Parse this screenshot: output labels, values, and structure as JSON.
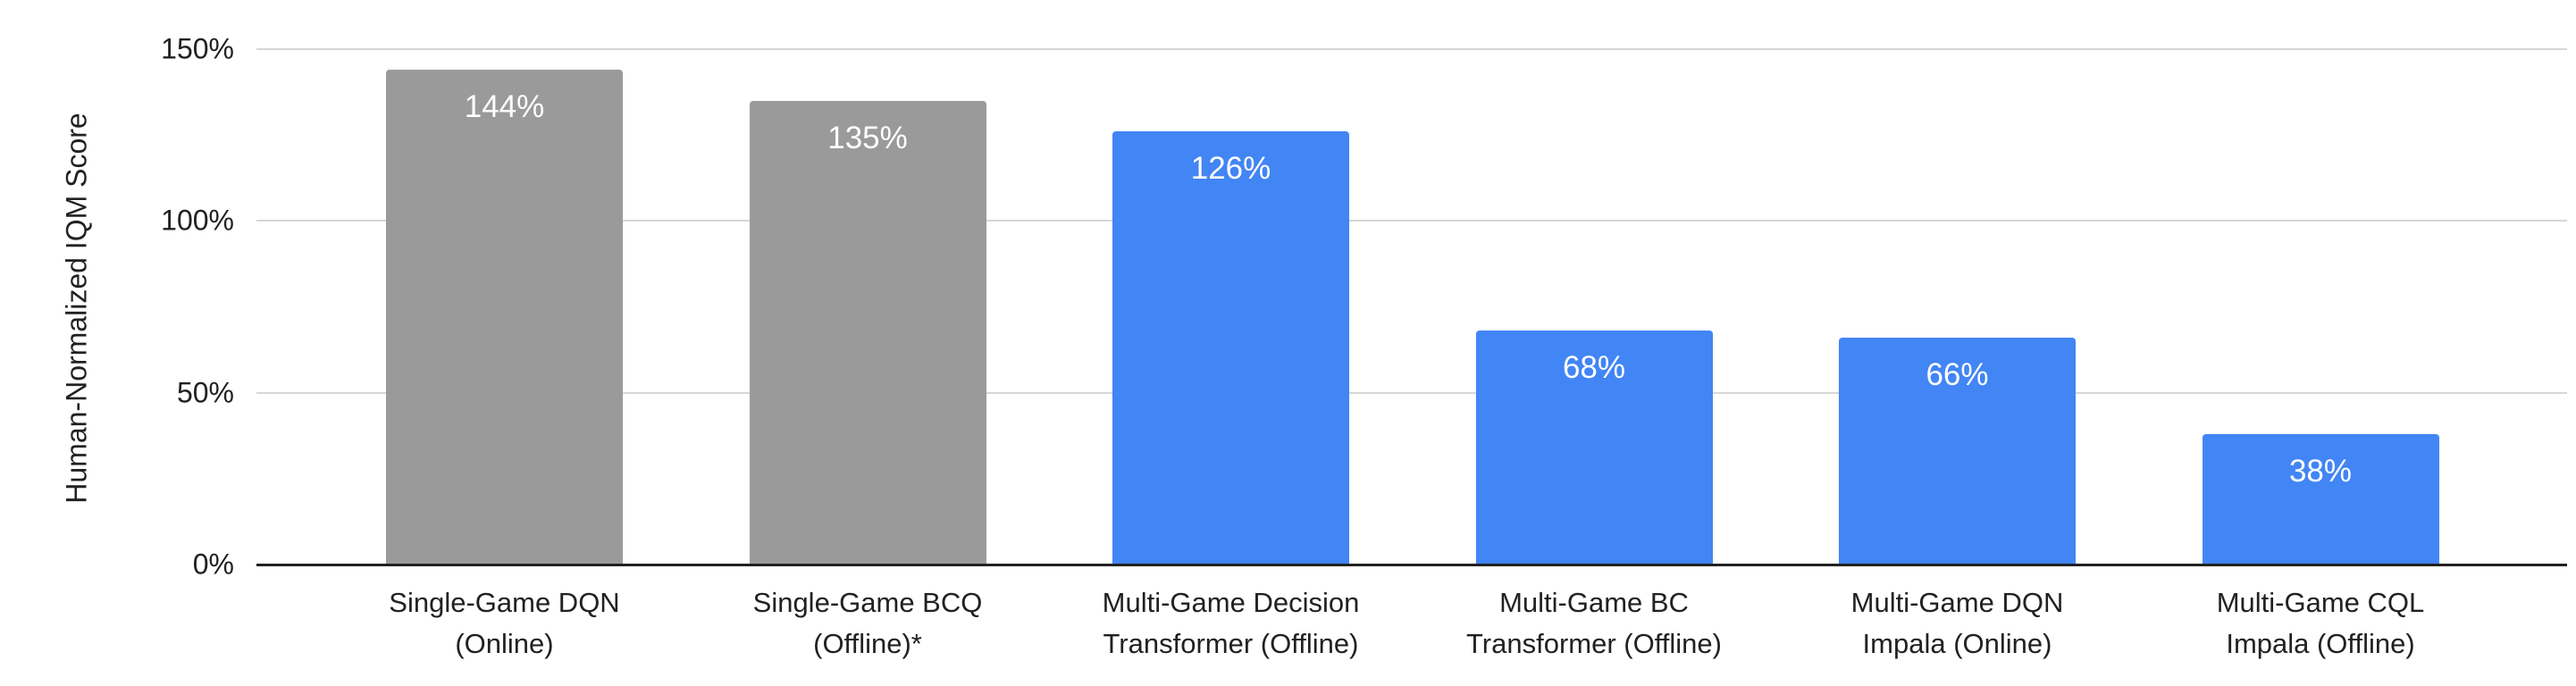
{
  "chart_data": {
    "type": "bar",
    "title": "",
    "xlabel": "",
    "ylabel": "Human-Normalized IQM Score",
    "ylim": [
      0,
      150
    ],
    "grid": true,
    "legend_position": "none",
    "yticks": [
      {
        "value": 0,
        "label": "0%"
      },
      {
        "value": 50,
        "label": "50%"
      },
      {
        "value": 100,
        "label": "100%"
      },
      {
        "value": 150,
        "label": "150%"
      }
    ],
    "categories": [
      "Single-Game DQN (Online)",
      "Single-Game BCQ (Offline)*",
      "Multi-Game Decision Transformer (Offline)",
      "Multi-Game BC Transformer (Offline)",
      "Multi-Game DQN Impala (Online)",
      "Multi-Game CQL Impala (Offline)"
    ],
    "category_lines": [
      [
        "Single-Game DQN",
        "(Online)"
      ],
      [
        "Single-Game BCQ",
        "(Offline)*"
      ],
      [
        "Multi-Game Decision",
        "Transformer (Offline)"
      ],
      [
        "Multi-Game BC",
        "Transformer (Offline)"
      ],
      [
        "Multi-Game DQN",
        "Impala (Online)"
      ],
      [
        "Multi-Game CQL",
        "Impala (Offline)"
      ]
    ],
    "values": [
      144,
      135,
      126,
      68,
      66,
      38
    ],
    "value_labels": [
      "144%",
      "135%",
      "126%",
      "68%",
      "66%",
      "38%"
    ],
    "bar_colors": [
      "#9a9a9a",
      "#9a9a9a",
      "#4285f4",
      "#4285f4",
      "#4285f4",
      "#4285f4"
    ],
    "colors": {
      "gray_bar": "#9a9a9a",
      "blue_bar": "#4285f4",
      "gridline": "#d7d7d7",
      "axis_line": "#212121",
      "tick_text": "#212121",
      "category_text": "#212121",
      "value_text": "#ffffff",
      "background": "#ffffff"
    }
  }
}
